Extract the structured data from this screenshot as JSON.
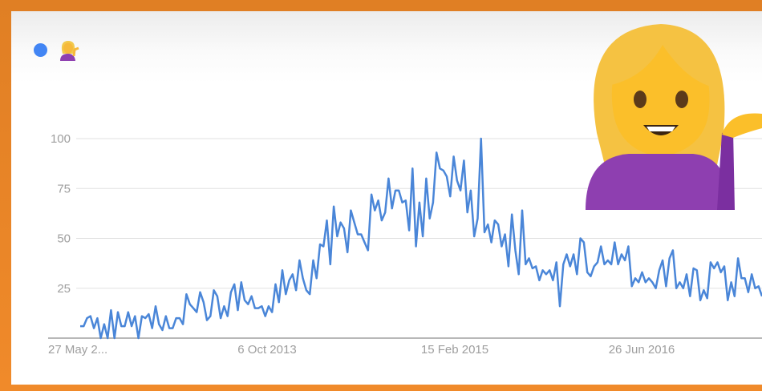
{
  "legend": {
    "series_icon": "woman-tipping-hand-emoji",
    "series_color": "#4285f4"
  },
  "overlay": {
    "icon": "woman-tipping-hand-emoji"
  },
  "chart_data": {
    "type": "line",
    "title": "",
    "xlabel": "",
    "ylabel": "",
    "ylim": [
      0,
      100
    ],
    "y_ticks": [
      "25",
      "50",
      "75",
      "100"
    ],
    "y_tick_values": [
      25,
      50,
      75,
      100
    ],
    "x_tick_labels": [
      "27 May 2...",
      "6 Oct 2013",
      "15 Feb 2015",
      "26 Jun 2016"
    ],
    "grid": true,
    "line_color": "#4a86d8",
    "series": [
      {
        "values": [
          6,
          6,
          10,
          11,
          5,
          10,
          0,
          7,
          0,
          14,
          0,
          13,
          6,
          6,
          13,
          6,
          11,
          0,
          11,
          10,
          12,
          5,
          16,
          7,
          4,
          11,
          5,
          5,
          10,
          10,
          7,
          22,
          17,
          15,
          13,
          23,
          18,
          9,
          11,
          24,
          21,
          10,
          16,
          11,
          23,
          27,
          14,
          28,
          19,
          17,
          21,
          15,
          15,
          16,
          11,
          16,
          13,
          27,
          18,
          34,
          22,
          29,
          32,
          24,
          39,
          30,
          24,
          22,
          39,
          30,
          47,
          46,
          59,
          37,
          66,
          51,
          58,
          55,
          43,
          64,
          58,
          52,
          52,
          48,
          44,
          72,
          64,
          69,
          59,
          63,
          80,
          65,
          74,
          74,
          68,
          69,
          54,
          85,
          46,
          68,
          51,
          80,
          60,
          68,
          93,
          85,
          84,
          81,
          71,
          91,
          79,
          74,
          89,
          63,
          74,
          51,
          60,
          100,
          53,
          57,
          48,
          59,
          57,
          46,
          52,
          36,
          62,
          44,
          32,
          64,
          37,
          40,
          35,
          36,
          29,
          34,
          32,
          34,
          29,
          38,
          16,
          37,
          42,
          36,
          42,
          32,
          50,
          48,
          33,
          31,
          36,
          38,
          46,
          37,
          39,
          37,
          48,
          37,
          42,
          39,
          46,
          26,
          30,
          28,
          33,
          28,
          30,
          28,
          25,
          34,
          39,
          26,
          40,
          44,
          25,
          28,
          25,
          32,
          21,
          35,
          34,
          19,
          24,
          20,
          38,
          35,
          38,
          33,
          36,
          19,
          28,
          21,
          40,
          30,
          30,
          23,
          32,
          25,
          26,
          21
        ]
      }
    ]
  }
}
